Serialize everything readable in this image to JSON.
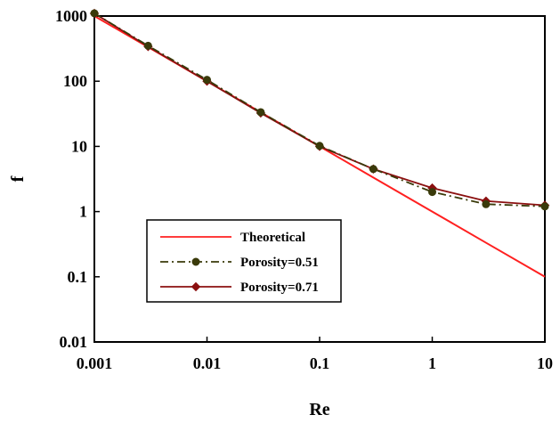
{
  "chart_data": {
    "type": "line",
    "title": "",
    "xlabel": "Re",
    "ylabel": "f",
    "x_scale": "log",
    "y_scale": "log",
    "xlim": [
      0.001,
      10
    ],
    "ylim": [
      0.01,
      1000
    ],
    "grid": false,
    "legend_position": "bottom-left",
    "x_ticks": [
      {
        "value": 0.001,
        "label": "0.001"
      },
      {
        "value": 0.01,
        "label": "0.01"
      },
      {
        "value": 0.1,
        "label": "0.1"
      },
      {
        "value": 1,
        "label": "1"
      },
      {
        "value": 10,
        "label": "10"
      }
    ],
    "y_ticks": [
      {
        "value": 0.01,
        "label": "0.01"
      },
      {
        "value": 0.1,
        "label": "0.1"
      },
      {
        "value": 1,
        "label": "1"
      },
      {
        "value": 10,
        "label": "10"
      },
      {
        "value": 100,
        "label": "100"
      },
      {
        "value": 1000,
        "label": "1000"
      }
    ],
    "series": [
      {
        "name": "Theoretical",
        "color": "#ff2020",
        "style": "solid",
        "marker": "none",
        "x": [
          0.001,
          0.003,
          0.01,
          0.03,
          0.1,
          0.3,
          1,
          3,
          10
        ],
        "y": [
          1000,
          333.3,
          100,
          33.3,
          10,
          3.33,
          1,
          0.333,
          0.1
        ]
      },
      {
        "name": "Porosity=0.51",
        "color": "#3a3a0a",
        "style": "dash-dot",
        "marker": "circle",
        "x": [
          0.001,
          0.003,
          0.01,
          0.03,
          0.1,
          0.3,
          1,
          3,
          10
        ],
        "y": [
          1100,
          350,
          105,
          33.5,
          10.2,
          4.5,
          2.0,
          1.3,
          1.2
        ]
      },
      {
        "name": "Porosity=0.71",
        "color": "#8b1010",
        "style": "solid",
        "marker": "diamond",
        "x": [
          0.001,
          0.003,
          0.01,
          0.03,
          0.1,
          0.3,
          1,
          3,
          10
        ],
        "y": [
          1100,
          340,
          100,
          32.5,
          10,
          4.5,
          2.3,
          1.45,
          1.25
        ]
      }
    ]
  }
}
